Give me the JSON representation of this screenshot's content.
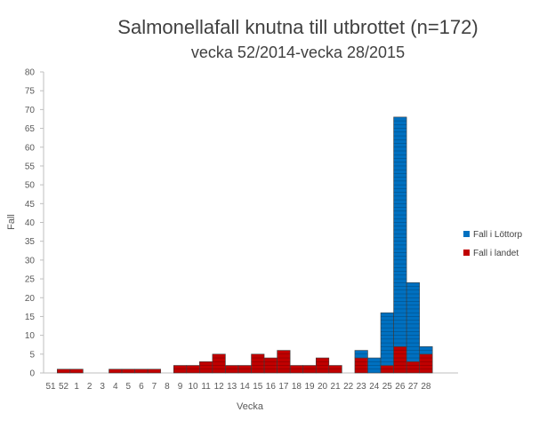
{
  "chart_data": {
    "type": "bar",
    "stacked": true,
    "title": "Salmonellafall knutna till utbrottet (n=172)",
    "subtitle": "vecka 52/2014-vecka 28/2015",
    "xlabel": "Vecka",
    "ylabel": "Fall",
    "ylim": [
      0,
      80
    ],
    "yticks": [
      0,
      5,
      10,
      15,
      20,
      25,
      30,
      35,
      40,
      45,
      50,
      55,
      60,
      65,
      70,
      75,
      80
    ],
    "grid": false,
    "legend_position": "right",
    "categories": [
      "51",
      "52",
      "1",
      "2",
      "3",
      "4",
      "5",
      "6",
      "7",
      "8",
      "9",
      "10",
      "11",
      "12",
      "13",
      "14",
      "15",
      "16",
      "17",
      "18",
      "19",
      "20",
      "21",
      "22",
      "23",
      "24",
      "25",
      "26",
      "27",
      "28"
    ],
    "series": [
      {
        "name": "Fall i landet",
        "color": "#C00000",
        "values": [
          0,
          1,
          1,
          0,
          0,
          1,
          1,
          1,
          1,
          0,
          2,
          2,
          3,
          5,
          2,
          2,
          5,
          4,
          6,
          2,
          2,
          4,
          2,
          0,
          4,
          0,
          2,
          7,
          3,
          5
        ]
      },
      {
        "name": "Fall i Löttorp",
        "color": "#0070C0",
        "values": [
          0,
          0,
          0,
          0,
          0,
          0,
          0,
          0,
          0,
          0,
          0,
          0,
          0,
          0,
          0,
          0,
          0,
          0,
          0,
          0,
          0,
          0,
          0,
          0,
          2,
          4,
          14,
          61,
          21,
          2
        ]
      }
    ]
  }
}
